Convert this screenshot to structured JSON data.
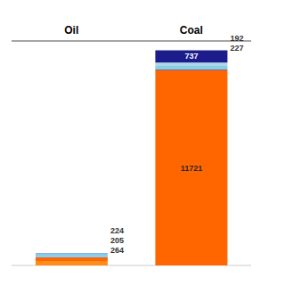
{
  "chart_data": {
    "type": "bar",
    "stacked": true,
    "categories": [
      "Oil",
      "Coal"
    ],
    "series": [
      {
        "values": [
          264,
          11721
        ],
        "colors": [
          "#FF8C1A",
          "#FF6600"
        ],
        "value_labels": [
          "264",
          "11721"
        ]
      },
      {
        "values": [
          205,
          55
        ],
        "colors": [
          "#FF6600",
          "#8B0000"
        ],
        "value_labels": [
          "205",
          null
        ]
      },
      {
        "values": [
          25,
          227
        ],
        "colors": [
          "#8B0000",
          "#87CEEB"
        ],
        "value_labels": [
          null,
          "227"
        ]
      },
      {
        "values": [
          224,
          192
        ],
        "colors": [
          "#87CEEB",
          "#ADD8E6"
        ],
        "value_labels": [
          "224",
          "192"
        ]
      },
      {
        "values": [
          18,
          737
        ],
        "colors": [
          "#000099",
          "#1C1C8C"
        ],
        "value_labels": [
          null,
          "737"
        ]
      }
    ],
    "ylim": [
      0,
      13500
    ],
    "yticks": [
      0,
      1687.5,
      3375,
      5062.5,
      6750,
      8437.5,
      10125,
      11812.5,
      13500
    ],
    "grid": true,
    "tick_labels": "x",
    "data_labels": true
  }
}
